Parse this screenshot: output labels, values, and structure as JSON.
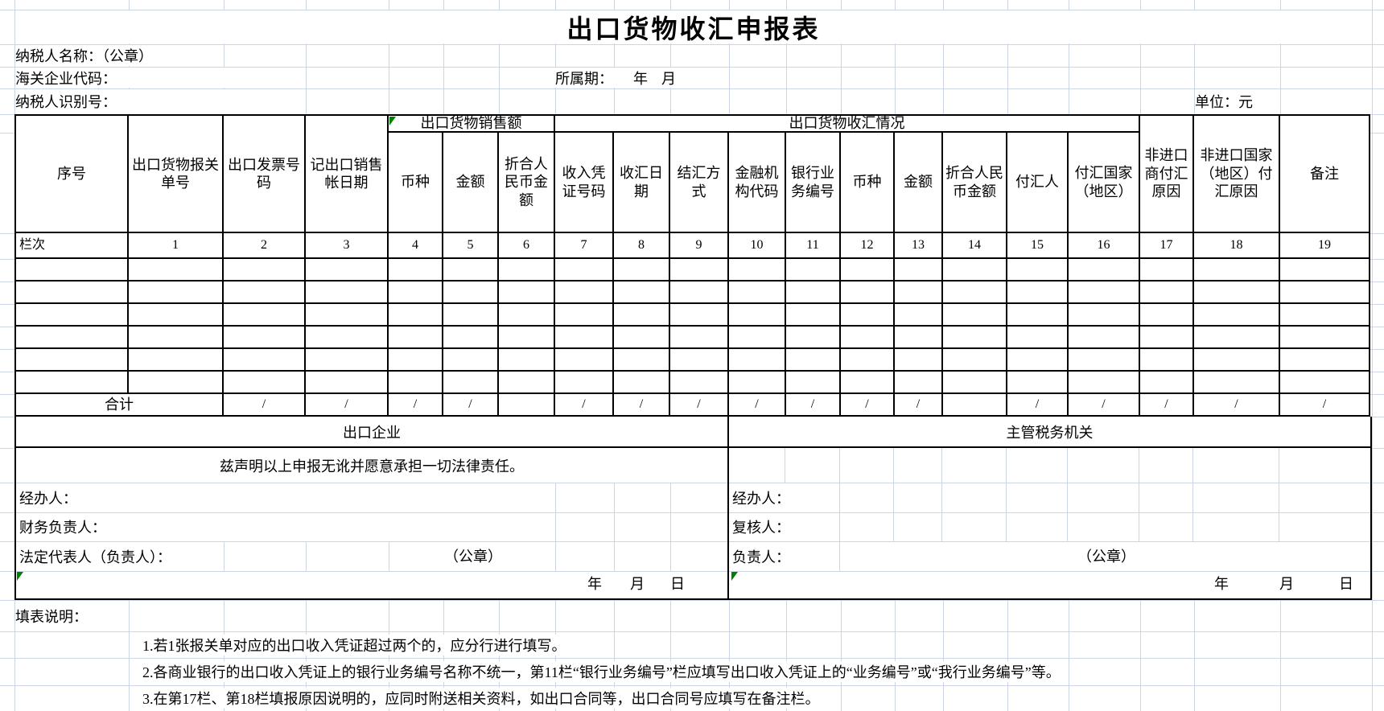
{
  "title": "出口货物收汇申报表",
  "colors": {
    "grid": "#ccd5e5",
    "border": "#000000",
    "flag_green": "#008000"
  },
  "top_fields": {
    "taxpayer_name": "纳税人名称：（公章）",
    "customs_code": "海关企业代码：",
    "period_label": "所属期：",
    "period_year": "年",
    "period_month": "月",
    "taxpayer_id": "纳税人识别号：",
    "unit": "单位：元"
  },
  "table": {
    "serial_header": "序号",
    "lane_label": "栏次",
    "group_sales": "出口货物销售额",
    "group_fx": "出口货物收汇情况",
    "total_label": "合计",
    "slash": "/",
    "empty_row_count": 6,
    "total_blank_nums": [
      6,
      14
    ],
    "columns": [
      {
        "num": "1",
        "label": "出口货物报关单号",
        "group": ""
      },
      {
        "num": "2",
        "label": "出口发票号码",
        "group": ""
      },
      {
        "num": "3",
        "label": "记出口销售帐日期",
        "group": ""
      },
      {
        "num": "4",
        "label": "币种",
        "group": "sales"
      },
      {
        "num": "5",
        "label": "金额",
        "group": "sales"
      },
      {
        "num": "6",
        "label": "折合人民币金额",
        "group": "sales"
      },
      {
        "num": "7",
        "label": "收入凭证号码",
        "group": "fx"
      },
      {
        "num": "8",
        "label": "收汇日期",
        "group": "fx"
      },
      {
        "num": "9",
        "label": "结汇方式",
        "group": "fx"
      },
      {
        "num": "10",
        "label": "金融机构代码",
        "group": "fx"
      },
      {
        "num": "11",
        "label": "银行业务编号",
        "group": "fx"
      },
      {
        "num": "12",
        "label": "币种",
        "group": "fx"
      },
      {
        "num": "13",
        "label": "金额",
        "group": "fx"
      },
      {
        "num": "14",
        "label": "折合人民币金额",
        "group": "fx"
      },
      {
        "num": "15",
        "label": "付汇人",
        "group": "fx"
      },
      {
        "num": "16",
        "label": "付汇国家（地区）",
        "group": "fx"
      },
      {
        "num": "17",
        "label": "非进口商付汇原因",
        "group": ""
      },
      {
        "num": "18",
        "label": "非进口国家（地区）付汇原因",
        "group": ""
      },
      {
        "num": "19",
        "label": "备注",
        "group": ""
      }
    ]
  },
  "exporter_panel": {
    "header": "出口企业",
    "declaration": "兹声明以上申报无讹并愿意承担一切法律责任。",
    "agent_label": "经办人：",
    "finance_label": "财务负责人：",
    "legal_rep_label": "法定代表人（负责人）：",
    "seal": "（公章）",
    "year": "年",
    "month": "月",
    "day": "日"
  },
  "tax_panel": {
    "header": "主管税务机关",
    "agent_label": "经办人：",
    "reviewer_label": "复核人：",
    "head_label": "负责人：",
    "seal": "（公章）",
    "year": "年",
    "month": "月",
    "day": "日"
  },
  "notes": {
    "header": "填表说明：",
    "items": [
      "1.若1张报关单对应的出口收入凭证超过两个的，应分行进行填写。",
      "2.各商业银行的出口收入凭证上的银行业务编号名称不统一，第11栏“银行业务编号”栏应填写出口收入凭证上的“业务编号”或“我行业务编号”等。",
      "3.在第17栏、第18栏填报原因说明的，应同时附送相关资料，如出口合同等，出口合同号应填写在备注栏。"
    ]
  }
}
